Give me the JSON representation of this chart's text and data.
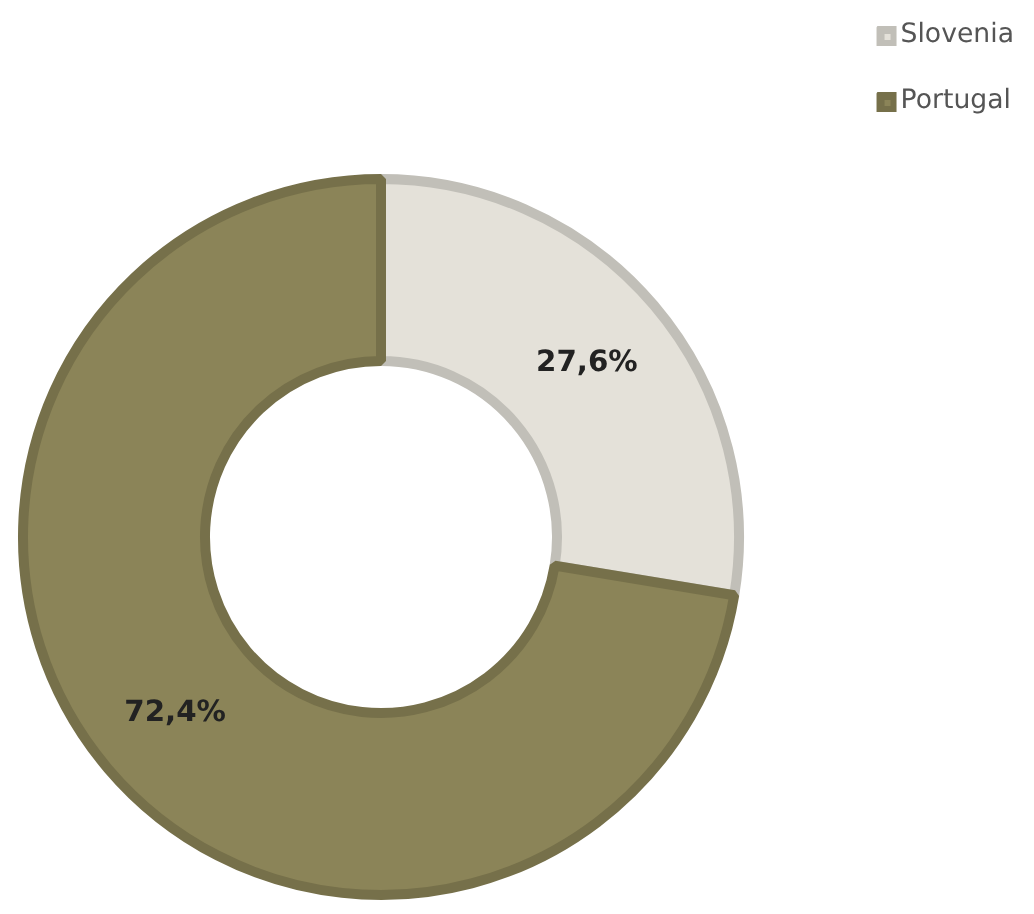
{
  "chart_data": {
    "type": "donut",
    "categories": [
      "Slovenia",
      "Portugal"
    ],
    "values": [
      27.6,
      72.4
    ],
    "colors": [
      "#e4e1d9",
      "#8b8458"
    ],
    "value_labels": [
      "27,6%",
      "72,4%"
    ],
    "legend": "top right"
  }
}
